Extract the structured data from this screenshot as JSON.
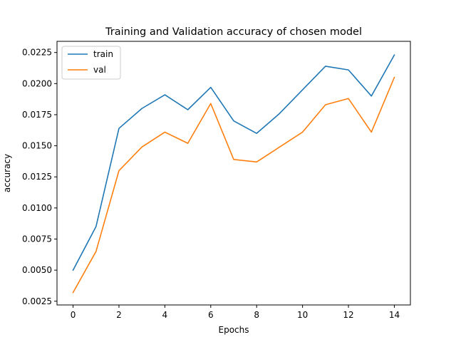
{
  "chart_data": {
    "type": "line",
    "title": "Training and Validation accuracy of chosen model",
    "xlabel": "Epochs",
    "ylabel": "accuracy",
    "xlim": [
      -0.7,
      14.7
    ],
    "ylim": [
      0.0022,
      0.0234
    ],
    "xticks": [
      0,
      2,
      4,
      6,
      8,
      10,
      12,
      14
    ],
    "xtick_labels": [
      "0",
      "2",
      "4",
      "6",
      "8",
      "10",
      "12",
      "14"
    ],
    "yticks": [
      0.0025,
      0.005,
      0.0075,
      0.01,
      0.0125,
      0.015,
      0.0175,
      0.02,
      0.0225
    ],
    "ytick_labels": [
      "0.0025",
      "0.0050",
      "0.0075",
      "0.0100",
      "0.0125",
      "0.0150",
      "0.0175",
      "0.0200",
      "0.0225"
    ],
    "grid": false,
    "legend": "top-left",
    "x": [
      0,
      1,
      2,
      3,
      4,
      5,
      6,
      7,
      8,
      9,
      10,
      11,
      12,
      13,
      14
    ],
    "series": [
      {
        "name": "train",
        "color": "#1f77b4",
        "values": [
          0.005,
          0.0085,
          0.0164,
          0.018,
          0.0191,
          0.0179,
          0.0197,
          0.017,
          0.016,
          0.0176,
          0.0195,
          0.0214,
          0.0211,
          0.019,
          0.0223
        ]
      },
      {
        "name": "val",
        "color": "#ff7f0e",
        "values": [
          0.0032,
          0.0065,
          0.013,
          0.0149,
          0.0161,
          0.0152,
          0.0184,
          0.0139,
          0.0137,
          0.0149,
          0.0161,
          0.0183,
          0.0188,
          0.0161,
          0.0205
        ]
      }
    ]
  }
}
